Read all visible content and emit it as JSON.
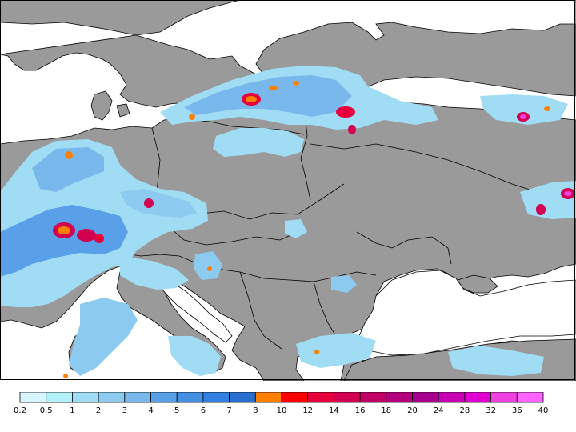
{
  "map": {
    "land_color": "#9a9a9a",
    "sea_color": "#ffffff",
    "border_color": "#000000"
  },
  "legend": {
    "labels": [
      "0.2",
      "0.5",
      "1",
      "2",
      "3",
      "4",
      "5",
      "6",
      "7",
      "8",
      "10",
      "12",
      "14",
      "16",
      "18",
      "20",
      "24",
      "28",
      "32",
      "36",
      "40"
    ],
    "colors": [
      "#d8f6ff",
      "#b4f0f8",
      "#a0dcf4",
      "#8ccaf0",
      "#78b8ec",
      "#5aa0e8",
      "#4690e4",
      "#3280e0",
      "#286fd0",
      "#ff7f00",
      "#ff0000",
      "#e8003c",
      "#d20050",
      "#c00064",
      "#b4007c",
      "#a8008c",
      "#c800b4",
      "#e000d0",
      "#f040e0",
      "#ff64ff"
    ]
  }
}
